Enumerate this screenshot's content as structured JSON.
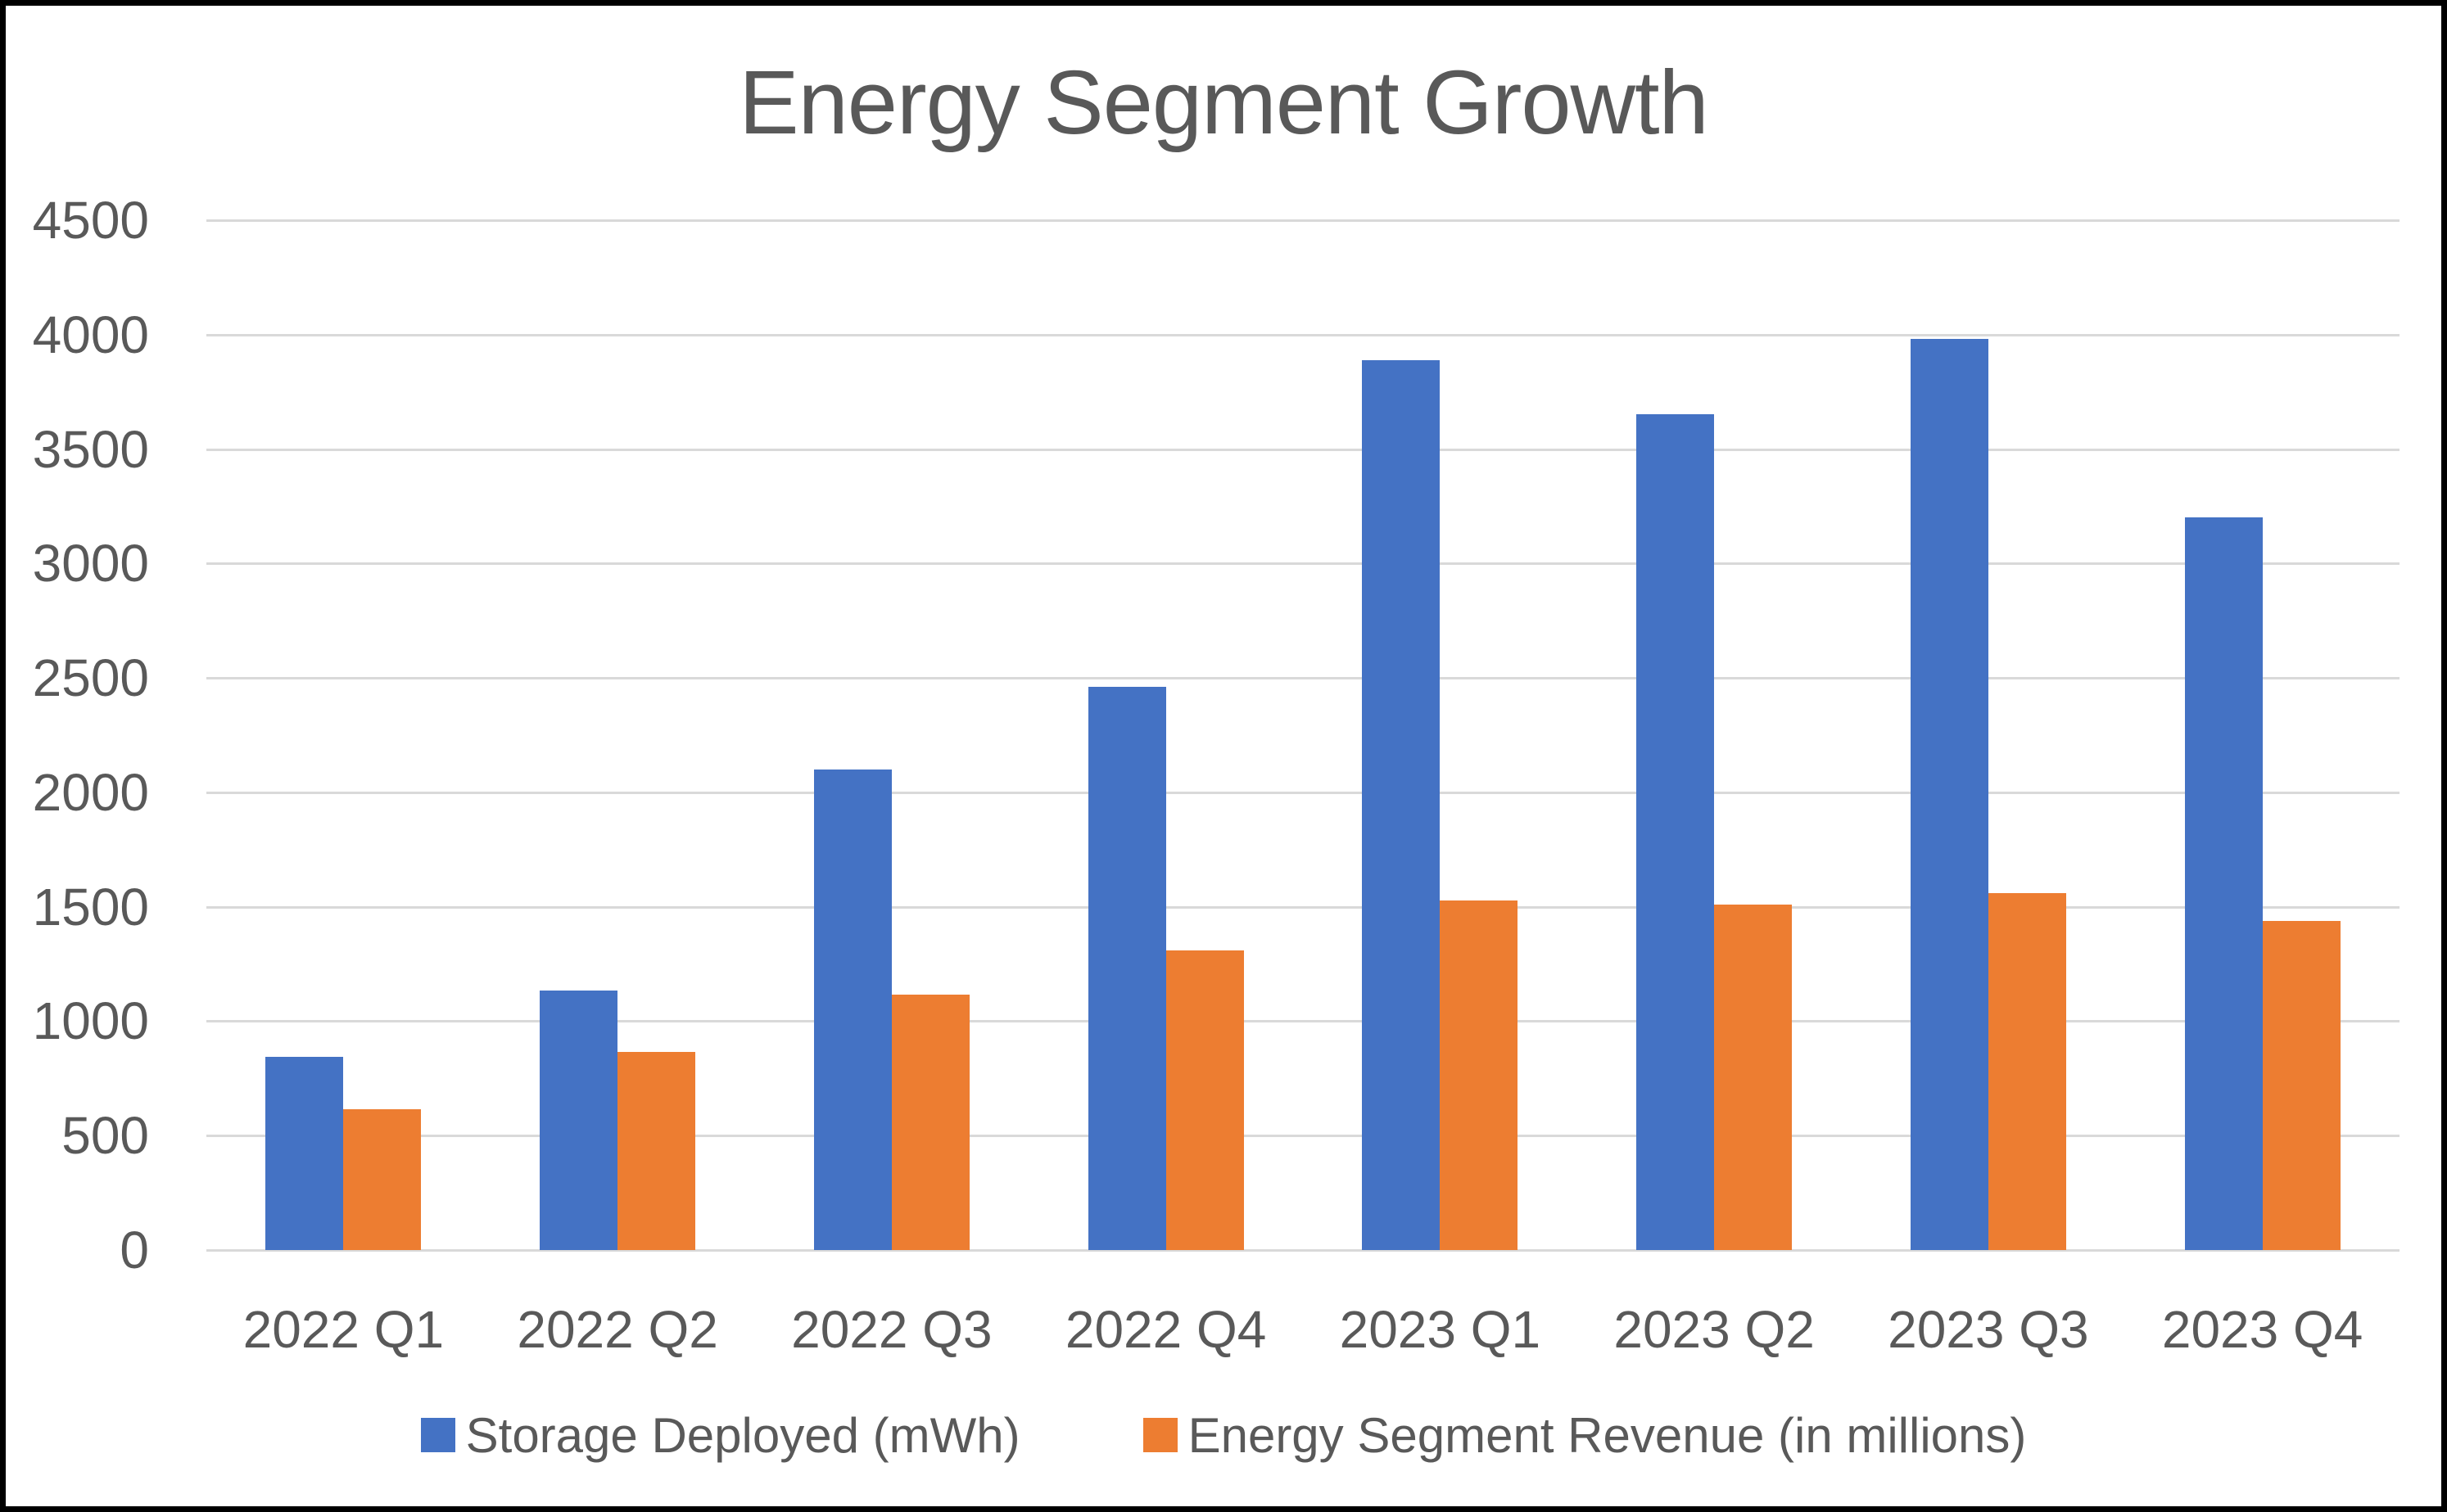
{
  "window": {
    "background": "#FFFFFF",
    "frame_border_color": "#000000"
  },
  "chart_data": {
    "type": "bar",
    "title": "Energy Segment Growth",
    "categories": [
      "2022 Q1",
      "2022 Q2",
      "2022 Q3",
      "2022 Q4",
      "2023 Q1",
      "2023 Q2",
      "2023 Q3",
      "2023 Q4"
    ],
    "series": [
      {
        "name": "Storage Deployed (mWh)",
        "color": "#4472C4",
        "values": [
          846,
          1133,
          2100,
          2462,
          3889,
          3653,
          3980,
          3202
        ]
      },
      {
        "name": "Energy Segment Revenue (in millions)",
        "color": "#ED7D31",
        "values": [
          616,
          866,
          1117,
          1310,
          1529,
          1509,
          1559,
          1438
        ]
      }
    ],
    "xlabel": "",
    "ylabel": "",
    "ylim": [
      0,
      4500
    ],
    "yticks": [
      0,
      500,
      1000,
      1500,
      2000,
      2500,
      3000,
      3500,
      4000,
      4500
    ],
    "grid": true,
    "gridline_color": "#D9D9D9",
    "legend_position": "bottom",
    "title_color": "#595959",
    "text_color": "#595959"
  }
}
